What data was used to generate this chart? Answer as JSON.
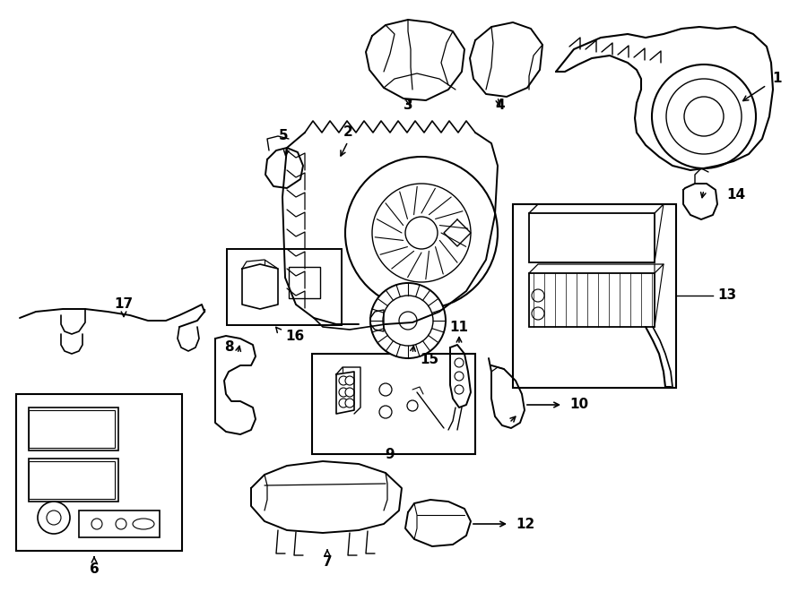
{
  "bg_color": "#ffffff",
  "line_color": "#000000",
  "fig_width": 9.0,
  "fig_height": 6.61,
  "dpi": 100,
  "lw": 1.1,
  "lw_thick": 1.5,
  "font_size": 11
}
